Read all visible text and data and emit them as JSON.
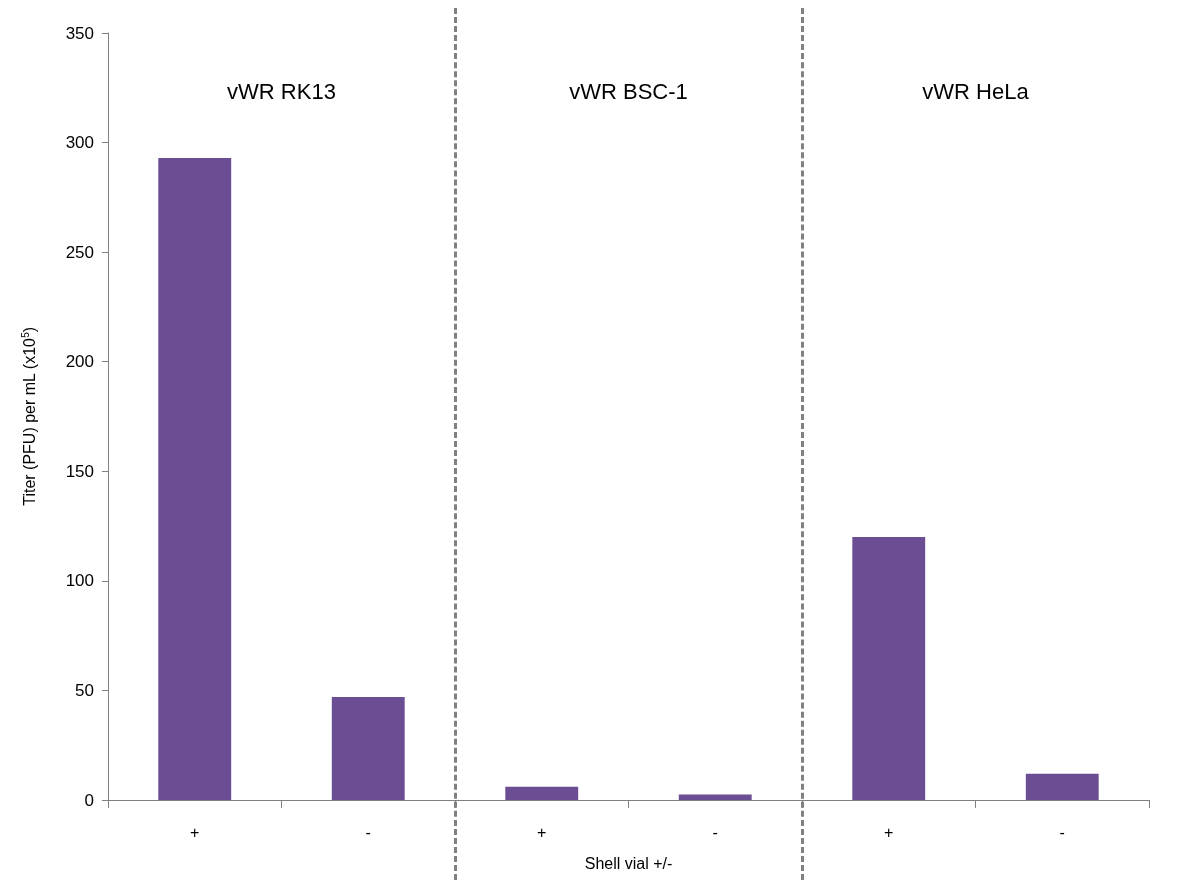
{
  "chart_data": {
    "type": "bar",
    "categories": [
      "+",
      "-",
      "+",
      "-",
      "+",
      "-"
    ],
    "values": [
      293,
      47,
      6,
      2.5,
      120,
      12
    ],
    "color": "#6b4d93",
    "xlabel": "Shell vial +/-",
    "ylabel": "Titer (PFU) per mL (x10$^{5}$)",
    "ylim": [
      0,
      350
    ],
    "yticks": [
      0,
      50,
      100,
      150,
      200,
      250,
      300,
      350
    ],
    "grid": false,
    "annotations": [
      "vWR RK13",
      "vWR BSC-1",
      "vWR HeLa"
    ]
  }
}
